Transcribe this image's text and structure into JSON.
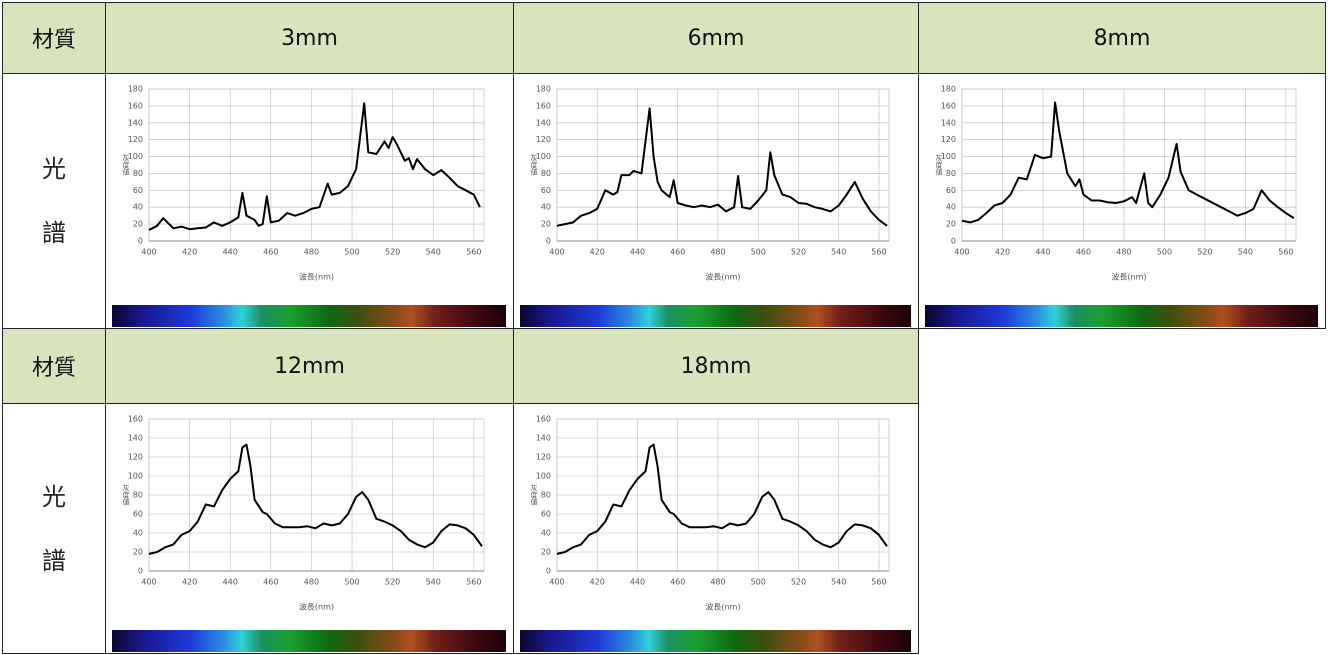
{
  "table": {
    "groups": [
      {
        "header": "材質",
        "label": "光譜"
      },
      {
        "header": "材質",
        "label": "光譜"
      }
    ]
  },
  "chart_data": [
    {
      "type": "line",
      "title": "3mm",
      "x_label": "波長(nm)",
      "y_label": "灰度値",
      "x": [
        400,
        404,
        407,
        412,
        416,
        420,
        424,
        428,
        432,
        436,
        440,
        444,
        446,
        448,
        452,
        454,
        456,
        458,
        460,
        464,
        468,
        472,
        476,
        480,
        484,
        488,
        490,
        494,
        498,
        502,
        506,
        508,
        512,
        516,
        518,
        520,
        522,
        526,
        528,
        530,
        532,
        536,
        540,
        544,
        548,
        552,
        556,
        560,
        563
      ],
      "series": [
        {
          "color": "#000000",
          "values": [
            13,
            18,
            27,
            15,
            17,
            14,
            15,
            16,
            22,
            18,
            22,
            28,
            57,
            30,
            25,
            18,
            20,
            53,
            22,
            24,
            33,
            30,
            33,
            38,
            40,
            68,
            55,
            57,
            65,
            85,
            163,
            105,
            103,
            118,
            110,
            123,
            115,
            95,
            98,
            85,
            97,
            85,
            78,
            84,
            75,
            65,
            60,
            55,
            40
          ]
        }
      ],
      "xlim": [
        400,
        565
      ],
      "ylim": [
        0,
        180
      ],
      "xticks": [
        400,
        420,
        440,
        460,
        480,
        500,
        520,
        540,
        560
      ],
      "yticks": [
        0,
        20,
        40,
        60,
        80,
        100,
        120,
        140,
        160,
        180
      ],
      "grid": true
    },
    {
      "type": "line",
      "title": "6mm",
      "x_label": "波長(nm)",
      "y_label": "灰度値",
      "x": [
        400,
        404,
        408,
        412,
        416,
        420,
        424,
        428,
        430,
        432,
        436,
        438,
        442,
        446,
        448,
        450,
        452,
        456,
        458,
        460,
        464,
        468,
        472,
        476,
        480,
        484,
        488,
        490,
        492,
        496,
        500,
        504,
        506,
        508,
        512,
        516,
        520,
        524,
        528,
        532,
        536,
        540,
        544,
        548,
        552,
        556,
        560,
        564
      ],
      "series": [
        {
          "color": "#000000",
          "values": [
            18,
            20,
            22,
            30,
            33,
            38,
            60,
            55,
            58,
            78,
            78,
            83,
            80,
            157,
            100,
            70,
            60,
            52,
            72,
            45,
            42,
            40,
            42,
            40,
            43,
            35,
            40,
            77,
            40,
            38,
            48,
            60,
            105,
            78,
            55,
            52,
            45,
            44,
            40,
            38,
            35,
            42,
            55,
            70,
            50,
            35,
            25,
            18
          ]
        }
      ],
      "xlim": [
        400,
        565
      ],
      "ylim": [
        0,
        180
      ],
      "xticks": [
        400,
        420,
        440,
        460,
        480,
        500,
        520,
        540,
        560
      ],
      "yticks": [
        0,
        20,
        40,
        60,
        80,
        100,
        120,
        140,
        160,
        180
      ],
      "grid": true
    },
    {
      "type": "line",
      "title": "8mm",
      "x_label": "波長(nm)",
      "y_label": "灰度値",
      "x": [
        400,
        404,
        408,
        412,
        416,
        420,
        424,
        428,
        432,
        436,
        440,
        444,
        446,
        448,
        452,
        456,
        458,
        460,
        464,
        468,
        472,
        476,
        480,
        484,
        486,
        490,
        492,
        494,
        498,
        502,
        506,
        508,
        512,
        516,
        520,
        524,
        528,
        532,
        536,
        540,
        544,
        548,
        552,
        556,
        560,
        564
      ],
      "series": [
        {
          "color": "#000000",
          "values": [
            24,
            22,
            25,
            33,
            42,
            45,
            55,
            75,
            73,
            102,
            98,
            100,
            164,
            130,
            80,
            65,
            73,
            55,
            48,
            48,
            46,
            45,
            47,
            52,
            45,
            80,
            45,
            40,
            55,
            75,
            115,
            82,
            60,
            55,
            50,
            45,
            40,
            35,
            30,
            33,
            38,
            60,
            48,
            40,
            33,
            27
          ]
        }
      ],
      "xlim": [
        400,
        565
      ],
      "ylim": [
        0,
        180
      ],
      "xticks": [
        400,
        420,
        440,
        460,
        480,
        500,
        520,
        540,
        560
      ],
      "yticks": [
        0,
        20,
        40,
        60,
        80,
        100,
        120,
        140,
        160,
        180
      ],
      "grid": true
    },
    {
      "type": "line",
      "title": "12mm",
      "x_label": "波長(nm)",
      "y_label": "灰度値",
      "x": [
        400,
        404,
        408,
        412,
        416,
        420,
        424,
        428,
        432,
        436,
        440,
        444,
        446,
        448,
        450,
        452,
        456,
        458,
        462,
        466,
        470,
        474,
        478,
        482,
        486,
        490,
        494,
        498,
        502,
        505,
        508,
        512,
        516,
        520,
        524,
        528,
        532,
        536,
        540,
        544,
        548,
        552,
        556,
        560,
        564
      ],
      "series": [
        {
          "color": "#000000",
          "values": [
            18,
            20,
            25,
            28,
            38,
            42,
            52,
            70,
            68,
            85,
            97,
            105,
            130,
            133,
            110,
            75,
            62,
            60,
            50,
            46,
            46,
            46,
            47,
            45,
            50,
            48,
            50,
            60,
            78,
            83,
            75,
            55,
            52,
            48,
            42,
            33,
            28,
            25,
            30,
            42,
            49,
            48,
            45,
            38,
            26
          ]
        }
      ],
      "xlim": [
        400,
        565
      ],
      "ylim": [
        0,
        160
      ],
      "xticks": [
        400,
        420,
        440,
        460,
        480,
        500,
        520,
        540,
        560
      ],
      "yticks": [
        0,
        20,
        40,
        60,
        80,
        100,
        120,
        140,
        160
      ],
      "grid": true
    },
    {
      "type": "line",
      "title": "18mm",
      "x_label": "波長(nm)",
      "y_label": "灰度値",
      "x": [
        400,
        404,
        408,
        412,
        416,
        420,
        424,
        428,
        432,
        436,
        440,
        444,
        446,
        448,
        450,
        452,
        456,
        458,
        462,
        466,
        470,
        474,
        478,
        482,
        486,
        490,
        494,
        498,
        502,
        505,
        508,
        512,
        516,
        520,
        524,
        528,
        532,
        536,
        540,
        544,
        548,
        552,
        556,
        560,
        564
      ],
      "series": [
        {
          "color": "#000000",
          "values": [
            18,
            20,
            25,
            28,
            38,
            42,
            52,
            70,
            68,
            85,
            97,
            105,
            130,
            133,
            110,
            75,
            62,
            60,
            50,
            46,
            46,
            46,
            47,
            45,
            50,
            48,
            50,
            60,
            78,
            83,
            75,
            55,
            52,
            48,
            42,
            33,
            28,
            25,
            30,
            42,
            49,
            48,
            45,
            38,
            26
          ]
        }
      ],
      "xlim": [
        400,
        565
      ],
      "ylim": [
        0,
        160
      ],
      "xticks": [
        400,
        420,
        440,
        460,
        480,
        500,
        520,
        540,
        560
      ],
      "yticks": [
        0,
        20,
        40,
        60,
        80,
        100,
        120,
        140,
        160
      ],
      "grid": true
    }
  ]
}
